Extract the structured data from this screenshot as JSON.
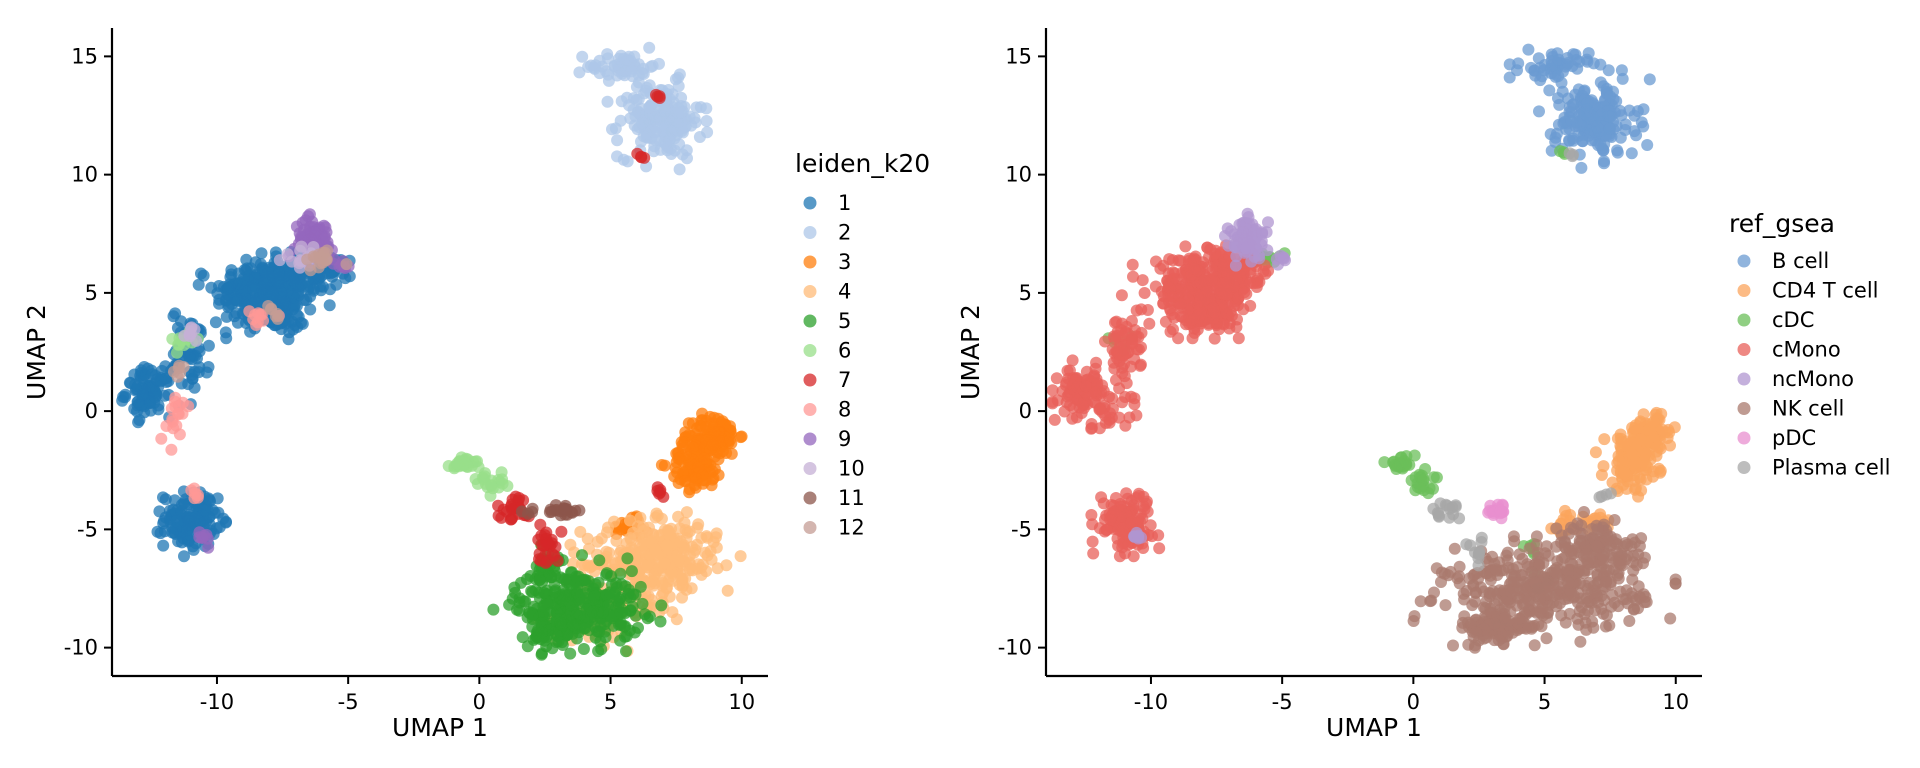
{
  "chart_data": [
    {
      "type": "scatter",
      "title": "",
      "xlabel": "UMAP 1",
      "ylabel": "UMAP 2",
      "xlim": [
        -14,
        11
      ],
      "ylim": [
        -11.2,
        16.2
      ],
      "xticks": [
        -10,
        -5,
        0,
        5,
        10
      ],
      "yticks": [
        -10,
        -5,
        0,
        5,
        10,
        15
      ],
      "xtick_labels": [
        "-10",
        "-5",
        "0",
        "5",
        "10"
      ],
      "ytick_labels": [
        "-10",
        "-5",
        "0",
        "5",
        "10",
        "15"
      ],
      "grid": false,
      "legend_position": "right",
      "legend_title": "leiden_k20",
      "series": [
        {
          "name": "1",
          "color": "#1f77b4",
          "clusters": [
            {
              "cx": -8.2,
              "cy": 5.0,
              "rx": 1.3,
              "ry": 1.0,
              "n": 220
            },
            {
              "cx": -7.0,
              "cy": 5.8,
              "rx": 1.2,
              "ry": 0.7,
              "n": 120
            },
            {
              "cx": -7.8,
              "cy": 4.0,
              "rx": 0.8,
              "ry": 0.5,
              "n": 60
            },
            {
              "cx": -12.6,
              "cy": 0.8,
              "rx": 0.6,
              "ry": 0.7,
              "n": 90
            },
            {
              "cx": -11.0,
              "cy": 2.6,
              "rx": 0.5,
              "ry": 1.2,
              "n": 60
            },
            {
              "cx": -11.0,
              "cy": -4.6,
              "rx": 0.7,
              "ry": 0.8,
              "n": 130
            },
            {
              "cx": -5.6,
              "cy": 6.2,
              "rx": 0.5,
              "ry": 0.3,
              "n": 25
            }
          ]
        },
        {
          "name": "2",
          "color": "#aec7e8",
          "clusters": [
            {
              "cx": 6.9,
              "cy": 12.3,
              "rx": 1.1,
              "ry": 1.1,
              "n": 180
            },
            {
              "cx": 5.4,
              "cy": 14.6,
              "rx": 0.9,
              "ry": 0.4,
              "n": 50
            }
          ]
        },
        {
          "name": "3",
          "color": "#ff7f0e",
          "clusters": [
            {
              "cx": 9.0,
              "cy": -1.0,
              "rx": 0.6,
              "ry": 0.6,
              "n": 90
            },
            {
              "cx": 8.3,
              "cy": -2.2,
              "rx": 0.7,
              "ry": 0.8,
              "n": 110
            },
            {
              "cx": 5.8,
              "cy": -4.8,
              "rx": 0.5,
              "ry": 0.4,
              "n": 25
            }
          ]
        },
        {
          "name": "4",
          "color": "#ffbb78",
          "clusters": [
            {
              "cx": 6.5,
              "cy": -6.5,
              "rx": 1.8,
              "ry": 1.2,
              "n": 260
            },
            {
              "cx": 4.0,
              "cy": -8.8,
              "rx": 1.1,
              "ry": 0.7,
              "n": 80
            },
            {
              "cx": 7.2,
              "cy": -5.5,
              "rx": 0.9,
              "ry": 0.6,
              "n": 60
            }
          ]
        },
        {
          "name": "5",
          "color": "#2ca02c",
          "clusters": [
            {
              "cx": 3.8,
              "cy": -8.2,
              "rx": 1.7,
              "ry": 1.1,
              "n": 300
            },
            {
              "cx": 2.9,
              "cy": -9.3,
              "rx": 0.6,
              "ry": 0.5,
              "n": 60
            },
            {
              "cx": 2.6,
              "cy": -6.8,
              "rx": 0.3,
              "ry": 0.6,
              "n": 25
            }
          ]
        },
        {
          "name": "6",
          "color": "#98df8a",
          "clusters": [
            {
              "cx": -0.5,
              "cy": -2.2,
              "rx": 0.4,
              "ry": 0.2,
              "n": 25
            },
            {
              "cx": 0.4,
              "cy": -3.0,
              "rx": 0.4,
              "ry": 0.3,
              "n": 20
            },
            {
              "cx": -11.3,
              "cy": 3.0,
              "rx": 0.4,
              "ry": 0.3,
              "n": 12
            }
          ]
        },
        {
          "name": "7",
          "color": "#d62728",
          "clusters": [
            {
              "cx": 1.4,
              "cy": -4.1,
              "rx": 0.5,
              "ry": 0.4,
              "n": 25
            },
            {
              "cx": 2.6,
              "cy": -5.6,
              "rx": 0.3,
              "ry": 0.6,
              "n": 25
            },
            {
              "cx": 6.9,
              "cy": -3.4,
              "rx": 0.2,
              "ry": 0.2,
              "n": 6
            },
            {
              "cx": 6.0,
              "cy": 10.8,
              "rx": 0.2,
              "ry": 0.2,
              "n": 4
            },
            {
              "cx": 6.8,
              "cy": 13.3,
              "rx": 0.2,
              "ry": 0.2,
              "n": 4
            }
          ]
        },
        {
          "name": "8",
          "color": "#ff9896",
          "clusters": [
            {
              "cx": -11.5,
              "cy": -0.3,
              "rx": 0.5,
              "ry": 0.7,
              "n": 18
            },
            {
              "cx": -8.6,
              "cy": 3.9,
              "rx": 0.5,
              "ry": 0.3,
              "n": 10
            },
            {
              "cx": -11.0,
              "cy": -3.5,
              "rx": 0.3,
              "ry": 0.2,
              "n": 6
            }
          ]
        },
        {
          "name": "9",
          "color": "#9467bd",
          "clusters": [
            {
              "cx": -6.3,
              "cy": 7.3,
              "rx": 0.5,
              "ry": 0.6,
              "n": 70
            },
            {
              "cx": -10.5,
              "cy": -5.4,
              "rx": 0.2,
              "ry": 0.2,
              "n": 8
            },
            {
              "cx": -5.2,
              "cy": 6.2,
              "rx": 0.3,
              "ry": 0.2,
              "n": 8
            }
          ]
        },
        {
          "name": "10",
          "color": "#c5b0d5",
          "clusters": [
            {
              "cx": -6.6,
              "cy": 6.5,
              "rx": 0.6,
              "ry": 0.4,
              "n": 15
            },
            {
              "cx": -11.0,
              "cy": 3.4,
              "rx": 0.3,
              "ry": 0.3,
              "n": 8
            }
          ]
        },
        {
          "name": "11",
          "color": "#8c564b",
          "clusters": [
            {
              "cx": 3.2,
              "cy": -4.2,
              "rx": 0.4,
              "ry": 0.2,
              "n": 20
            },
            {
              "cx": 1.8,
              "cy": -4.3,
              "rx": 0.2,
              "ry": 0.2,
              "n": 4
            }
          ]
        },
        {
          "name": "12",
          "color": "#c49c94",
          "clusters": [
            {
              "cx": -6.0,
              "cy": 6.4,
              "rx": 0.5,
              "ry": 0.3,
              "n": 15
            },
            {
              "cx": -11.5,
              "cy": 1.6,
              "rx": 0.3,
              "ry": 0.3,
              "n": 6
            },
            {
              "cx": -8.0,
              "cy": 4.3,
              "rx": 0.4,
              "ry": 0.3,
              "n": 6
            }
          ]
        }
      ]
    },
    {
      "type": "scatter",
      "title": "",
      "xlabel": "UMAP 1",
      "ylabel": "UMAP 2",
      "xlim": [
        -14,
        11
      ],
      "ylim": [
        -11.2,
        16.2
      ],
      "xticks": [
        -10,
        -5,
        0,
        5,
        10
      ],
      "yticks": [
        -10,
        -5,
        0,
        5,
        10,
        15
      ],
      "xtick_labels": [
        "-10",
        "-5",
        "0",
        "5",
        "10"
      ],
      "ytick_labels": [
        "-10",
        "-5",
        "0",
        "5",
        "10",
        "15"
      ],
      "grid": false,
      "legend_position": "right",
      "legend_title": "ref_gsea",
      "series": [
        {
          "name": "B cell",
          "color": "#6b9bd2",
          "clusters": [
            {
              "cx": 6.9,
              "cy": 12.3,
              "rx": 1.1,
              "ry": 1.1,
              "n": 180
            },
            {
              "cx": 5.4,
              "cy": 14.6,
              "rx": 0.9,
              "ry": 0.4,
              "n": 50
            }
          ]
        },
        {
          "name": "CD4 T cell",
          "color": "#fba45c",
          "clusters": [
            {
              "cx": 9.0,
              "cy": -1.0,
              "rx": 0.6,
              "ry": 0.6,
              "n": 90
            },
            {
              "cx": 8.3,
              "cy": -2.2,
              "rx": 0.7,
              "ry": 0.8,
              "n": 110
            },
            {
              "cx": 5.8,
              "cy": -4.8,
              "rx": 0.5,
              "ry": 0.4,
              "n": 20
            },
            {
              "cx": 7.2,
              "cy": -4.7,
              "rx": 0.4,
              "ry": 0.3,
              "n": 15
            }
          ]
        },
        {
          "name": "cDC",
          "color": "#6bbf59",
          "clusters": [
            {
              "cx": -0.5,
              "cy": -2.2,
              "rx": 0.4,
              "ry": 0.2,
              "n": 25
            },
            {
              "cx": 0.4,
              "cy": -3.0,
              "rx": 0.4,
              "ry": 0.3,
              "n": 20
            },
            {
              "cx": -5.8,
              "cy": 6.4,
              "rx": 0.6,
              "ry": 0.2,
              "n": 20
            },
            {
              "cx": -11.2,
              "cy": 3.0,
              "rx": 0.3,
              "ry": 0.2,
              "n": 6
            },
            {
              "cx": 5.7,
              "cy": 10.9,
              "rx": 0.1,
              "ry": 0.1,
              "n": 3
            },
            {
              "cx": 4.5,
              "cy": -5.7,
              "rx": 0.3,
              "ry": 0.2,
              "n": 6
            },
            {
              "cx": 4.8,
              "cy": -7.2,
              "rx": 0.2,
              "ry": 0.2,
              "n": 4
            }
          ]
        },
        {
          "name": "cMono",
          "color": "#e8605a",
          "clusters": [
            {
              "cx": -8.2,
              "cy": 5.0,
              "rx": 1.3,
              "ry": 1.0,
              "n": 220
            },
            {
              "cx": -7.0,
              "cy": 5.8,
              "rx": 1.2,
              "ry": 0.7,
              "n": 120
            },
            {
              "cx": -7.8,
              "cy": 4.0,
              "rx": 0.8,
              "ry": 0.5,
              "n": 60
            },
            {
              "cx": -12.6,
              "cy": 0.8,
              "rx": 0.6,
              "ry": 0.7,
              "n": 90
            },
            {
              "cx": -11.0,
              "cy": 2.6,
              "rx": 0.5,
              "ry": 1.2,
              "n": 60
            },
            {
              "cx": -11.0,
              "cy": -4.6,
              "rx": 0.7,
              "ry": 0.8,
              "n": 130
            },
            {
              "cx": -11.5,
              "cy": -0.3,
              "rx": 0.5,
              "ry": 0.7,
              "n": 18
            }
          ]
        },
        {
          "name": "ncMono",
          "color": "#b096d0",
          "clusters": [
            {
              "cx": -6.3,
              "cy": 7.3,
              "rx": 0.5,
              "ry": 0.6,
              "n": 70
            },
            {
              "cx": -10.5,
              "cy": -5.4,
              "rx": 0.2,
              "ry": 0.2,
              "n": 8
            },
            {
              "cx": -5.0,
              "cy": 6.3,
              "rx": 0.3,
              "ry": 0.2,
              "n": 6
            }
          ]
        },
        {
          "name": "NK cell",
          "color": "#a97a6e",
          "clusters": [
            {
              "cx": 5.0,
              "cy": -7.6,
              "rx": 2.6,
              "ry": 1.2,
              "n": 360
            },
            {
              "cx": 7.0,
              "cy": -5.8,
              "rx": 1.2,
              "ry": 0.8,
              "n": 120
            },
            {
              "cx": 3.2,
              "cy": -9.2,
              "rx": 0.9,
              "ry": 0.5,
              "n": 90
            }
          ]
        },
        {
          "name": "pDC",
          "color": "#e88fcf",
          "clusters": [
            {
              "cx": 3.2,
              "cy": -4.2,
              "rx": 0.4,
              "ry": 0.2,
              "n": 20
            }
          ]
        },
        {
          "name": "Plasma cell",
          "color": "#a7a7a7",
          "clusters": [
            {
              "cx": 1.2,
              "cy": -4.2,
              "rx": 0.4,
              "ry": 0.3,
              "n": 15
            },
            {
              "cx": 2.4,
              "cy": -5.8,
              "rx": 0.3,
              "ry": 0.4,
              "n": 10
            },
            {
              "cx": 6.1,
              "cy": 10.8,
              "rx": 0.1,
              "ry": 0.1,
              "n": 3
            },
            {
              "cx": 7.3,
              "cy": -3.5,
              "rx": 0.2,
              "ry": 0.1,
              "n": 4
            }
          ]
        }
      ]
    }
  ]
}
